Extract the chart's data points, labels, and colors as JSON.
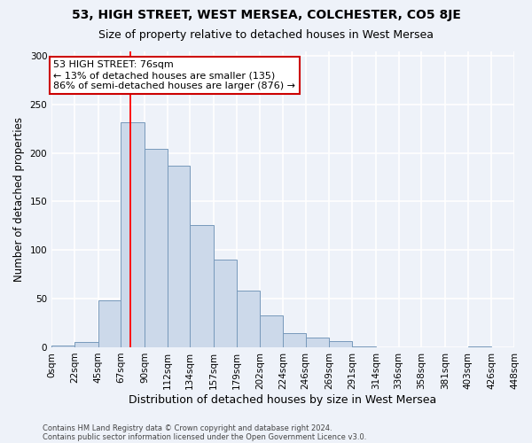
{
  "title": "53, HIGH STREET, WEST MERSEA, COLCHESTER, CO5 8JE",
  "subtitle": "Size of property relative to detached houses in West Mersea",
  "xlabel": "Distribution of detached houses by size in West Mersea",
  "ylabel": "Number of detached properties",
  "footer1": "Contains HM Land Registry data © Crown copyright and database right 2024.",
  "footer2": "Contains public sector information licensed under the Open Government Licence v3.0.",
  "bin_edges": [
    0,
    22,
    45,
    67,
    90,
    112,
    134,
    157,
    179,
    202,
    224,
    246,
    269,
    291,
    314,
    336,
    358,
    381,
    403,
    426,
    448
  ],
  "bin_labels": [
    "0sqm",
    "22sqm",
    "45sqm",
    "67sqm",
    "90sqm",
    "112sqm",
    "134sqm",
    "157sqm",
    "179sqm",
    "202sqm",
    "224sqm",
    "246sqm",
    "269sqm",
    "291sqm",
    "314sqm",
    "336sqm",
    "358sqm",
    "381sqm",
    "403sqm",
    "426sqm",
    "448sqm"
  ],
  "bar_heights": [
    2,
    5,
    48,
    232,
    204,
    187,
    126,
    90,
    58,
    33,
    15,
    10,
    6,
    1,
    0,
    0,
    0,
    0,
    1,
    0
  ],
  "bar_color": "#ccd9ea",
  "bar_edge_color": "#7799bb",
  "red_line_x": 76,
  "annotation_text": "53 HIGH STREET: 76sqm\n← 13% of detached houses are smaller (135)\n86% of semi-detached houses are larger (876) →",
  "annotation_box_color": "#ffffff",
  "annotation_edge_color": "#cc0000",
  "annotation_text_color": "#000000",
  "ylim": [
    0,
    305
  ],
  "yticks": [
    0,
    50,
    100,
    150,
    200,
    250,
    300
  ],
  "bg_color": "#eef2f9",
  "grid_color": "#ffffff",
  "title_fontsize": 10,
  "subtitle_fontsize": 9,
  "xlabel_fontsize": 9,
  "ylabel_fontsize": 8.5,
  "tick_fontsize": 7.5,
  "annotation_fontsize": 8,
  "footer_fontsize": 6
}
